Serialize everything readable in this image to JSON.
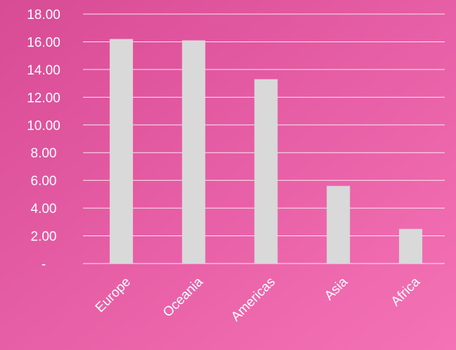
{
  "chart_data": {
    "type": "bar",
    "title": "",
    "xlabel": "",
    "ylabel": "",
    "categories": [
      "Europe",
      "Oceania",
      "Americas",
      "Asia",
      "Africa"
    ],
    "values": [
      16.2,
      16.1,
      13.3,
      5.6,
      2.5
    ],
    "ylim": [
      0,
      18
    ],
    "ytick_values": [
      0,
      2,
      4,
      6,
      8,
      10,
      12,
      14,
      16,
      18
    ],
    "ytick_labels": [
      "-",
      "2.00",
      "4.00",
      "6.00",
      "8.00",
      "10.00",
      "12.00",
      "14.00",
      "16.00",
      "18.00"
    ],
    "grid": true,
    "legend": "none",
    "colors": {
      "bar": "#d9d9d9",
      "gridline": "#ffffff",
      "text": "#ffffff",
      "background_start": "#d84b95",
      "background_end": "#f572b6"
    }
  }
}
